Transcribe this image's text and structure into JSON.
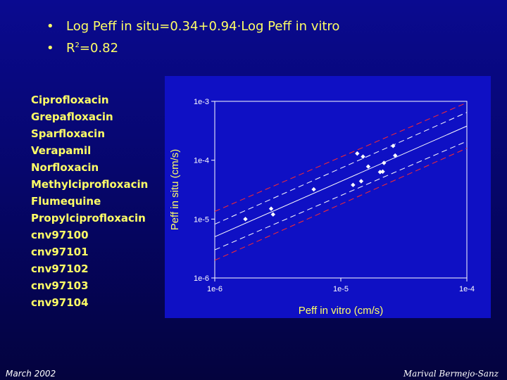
{
  "bullets": {
    "eq_text": "Log Peff in situ=0.34+0.94·Log Peff in vitro",
    "r2_prefix": "R",
    "r2_sup": "2",
    "r2_value": "=0.82"
  },
  "compounds": [
    "Ciprofloxacin",
    "Grepafloxacin",
    "Sparfloxacin",
    "Verapamil",
    "Norfloxacin",
    "Methylciprofloxacin",
    "Flumequine",
    "Propylciprofloxacin",
    "cnv97100",
    "cnv97101",
    "cnv97102",
    "cnv97103",
    "cnv97104"
  ],
  "footer": {
    "left": "March 2002",
    "right": "Marival Bermejo-Sanz"
  },
  "chart_data": {
    "type": "scatter",
    "xscale": "log",
    "yscale": "log",
    "xlabel": "Peff in vitro (cm/s)",
    "ylabel": "Peff in situ (cm/s)",
    "xlim": [
      1e-06,
      0.0001
    ],
    "ylim": [
      1e-06,
      0.001
    ],
    "xticks": [
      "1e-6",
      "1e-5",
      "1e-4"
    ],
    "yticks": [
      "1e-6",
      "1e-5",
      "1e-4",
      "1e-3"
    ],
    "points": [
      {
        "x": 1.75e-06,
        "y": 1e-05
      },
      {
        "x": 2.8e-06,
        "y": 1.5e-05
      },
      {
        "x": 2.9e-06,
        "y": 1.2e-05
      },
      {
        "x": 6.1e-06,
        "y": 3.2e-05
      },
      {
        "x": 1.25e-05,
        "y": 3.8e-05
      },
      {
        "x": 1.35e-05,
        "y": 0.00013
      },
      {
        "x": 1.45e-05,
        "y": 4.4e-05
      },
      {
        "x": 1.5e-05,
        "y": 0.000115
      },
      {
        "x": 1.65e-05,
        "y": 7.8e-05
      },
      {
        "x": 2.05e-05,
        "y": 6.3e-05
      },
      {
        "x": 2.15e-05,
        "y": 6.4e-05
      },
      {
        "x": 2.2e-05,
        "y": 9e-05
      },
      {
        "x": 2.6e-05,
        "y": 0.000175
      },
      {
        "x": 2.7e-05,
        "y": 0.00012
      }
    ],
    "regression": {
      "intercept": 0.34,
      "slope": 0.94
    },
    "confidence_band": {
      "lower_at_xmin": 3e-06,
      "lower_at_xmax": 0.00021,
      "upper_at_xmin": 8.2e-06,
      "upper_at_xmax": 0.00065
    },
    "prediction_band": {
      "lower_at_xmin": 2e-06,
      "lower_at_xmax": 0.00016,
      "upper_at_xmin": 1.35e-05,
      "upper_at_xmax": 0.00095
    },
    "colors": {
      "panel": "#0f10c4",
      "points": "#ffffff",
      "regression": "#ffffff",
      "confidence": "#ffffff",
      "prediction": "#ff2b2b",
      "text": "#ffff66"
    },
    "grid": false,
    "legend": "none"
  }
}
